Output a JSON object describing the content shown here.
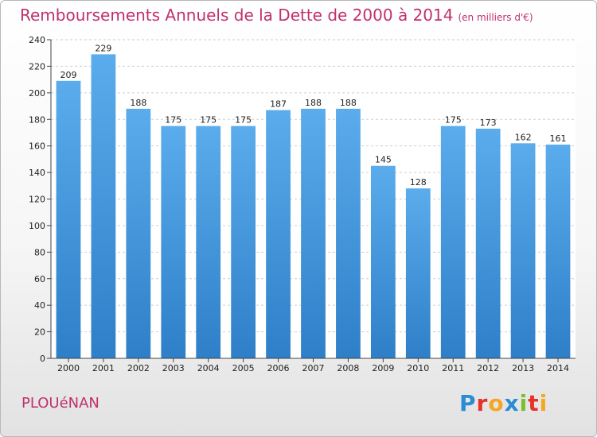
{
  "chart_data": {
    "type": "bar",
    "title": "Remboursements Annuels de la Dette de 2000 à 2014",
    "subtitle": "(en milliers d'€)",
    "categories": [
      "2000",
      "2001",
      "2002",
      "2003",
      "2004",
      "2005",
      "2006",
      "2007",
      "2008",
      "2009",
      "2010",
      "2011",
      "2012",
      "2013",
      "2014"
    ],
    "values": [
      209,
      229,
      188,
      175,
      175,
      175,
      187,
      188,
      188,
      145,
      128,
      175,
      173,
      162,
      161
    ],
    "ylim": [
      0,
      240
    ],
    "yticks": [
      0,
      20,
      40,
      60,
      80,
      100,
      120,
      140,
      160,
      180,
      200,
      220,
      240
    ],
    "grid": true,
    "xlabel": "",
    "ylabel": ""
  },
  "footer": {
    "town": "PLOUéNAN",
    "logo_letters": [
      "P",
      "r",
      "o",
      "x",
      "i",
      "t",
      "i"
    ],
    "logo_colors": [
      "#2a8dd4",
      "#e8302c",
      "#f5a623",
      "#2a8dd4",
      "#7bbf2a",
      "#e8302c",
      "#f5a623"
    ]
  },
  "colors": {
    "bar": "#3f95dc",
    "bar_light": "#5aacec",
    "bar_dark": "#2e7fc8",
    "title": "#c0306e"
  }
}
